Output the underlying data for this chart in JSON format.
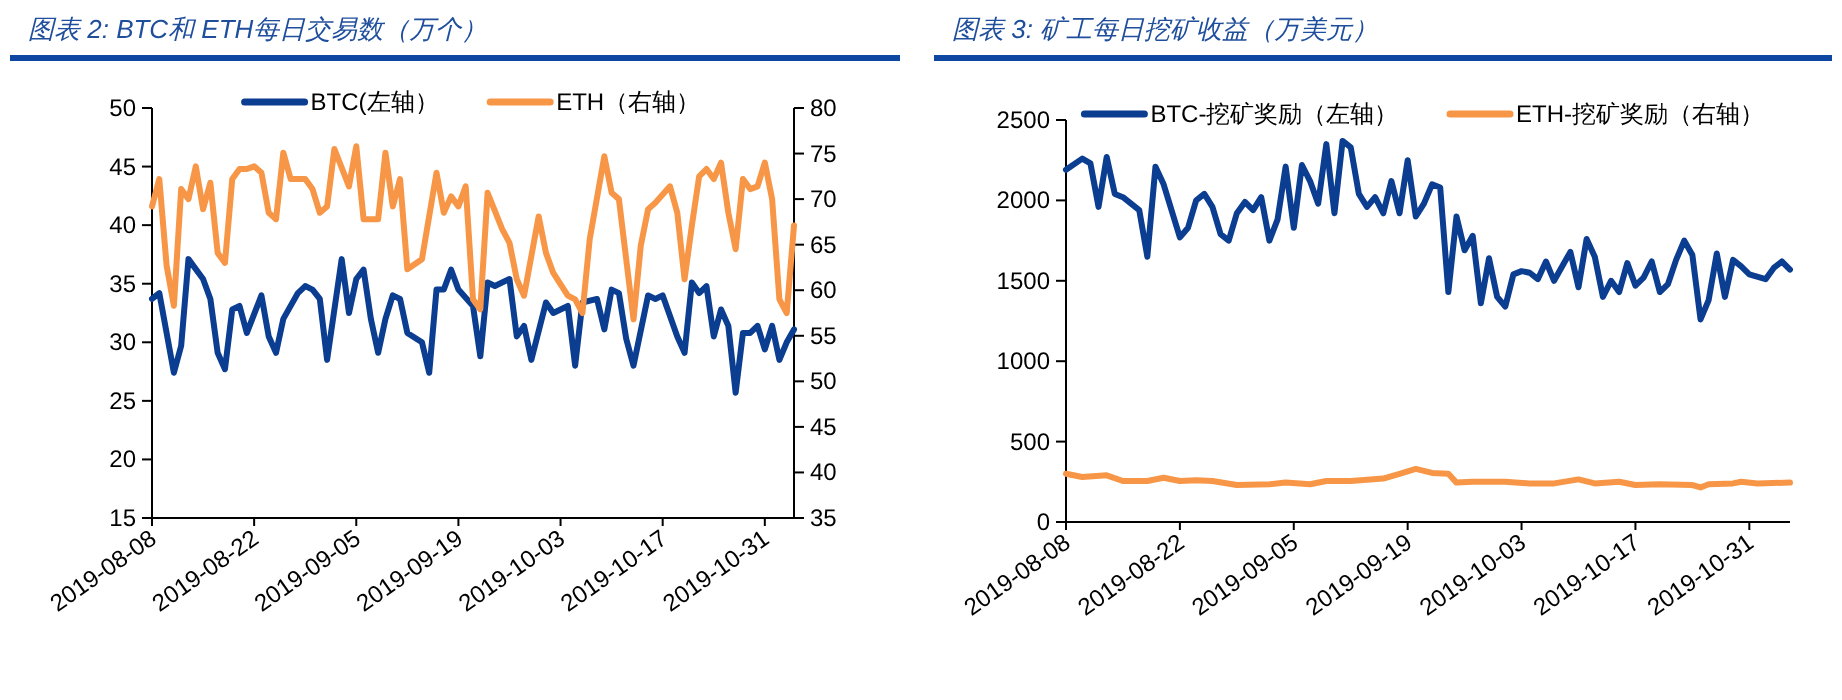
{
  "chart_data": [
    {
      "type": "line",
      "title": "图表 2:  BTC和 ETH每日交易数（万个）",
      "legend": "top",
      "xlim": [
        "2019-08-08",
        "2019-11-04"
      ],
      "xticks": [
        "2019-08-08",
        "2019-08-22",
        "2019-09-05",
        "2019-09-19",
        "2019-10-03",
        "2019-10-17",
        "2019-10-31"
      ],
      "ylim": [
        15,
        50
      ],
      "yticks": [
        15,
        20,
        25,
        30,
        35,
        40,
        45,
        50
      ],
      "y2lim": [
        35,
        80
      ],
      "y2ticks": [
        35,
        40,
        45,
        50,
        55,
        60,
        65,
        70,
        75,
        80
      ],
      "series": [
        {
          "name": "BTC(左轴）",
          "color": "#0b3d91",
          "x": [
            "2019-08-08",
            "2019-08-09",
            "2019-08-11",
            "2019-08-12",
            "2019-08-13",
            "2019-08-15",
            "2019-08-16",
            "2019-08-17",
            "2019-08-18",
            "2019-08-19",
            "2019-08-20",
            "2019-08-21",
            "2019-08-23",
            "2019-08-24",
            "2019-08-25",
            "2019-08-26",
            "2019-08-28",
            "2019-08-29",
            "2019-08-30",
            "2019-08-31",
            "2019-09-01",
            "2019-09-03",
            "2019-09-04",
            "2019-09-05",
            "2019-09-06",
            "2019-09-07",
            "2019-09-08",
            "2019-09-09",
            "2019-09-10",
            "2019-09-11",
            "2019-09-12",
            "2019-09-14",
            "2019-09-15",
            "2019-09-16",
            "2019-09-17",
            "2019-09-18",
            "2019-09-19",
            "2019-09-21",
            "2019-09-22",
            "2019-09-23",
            "2019-09-24",
            "2019-09-26",
            "2019-09-27",
            "2019-09-28",
            "2019-09-29",
            "2019-10-01",
            "2019-10-02",
            "2019-10-03",
            "2019-10-04",
            "2019-10-05",
            "2019-10-06",
            "2019-10-08",
            "2019-10-09",
            "2019-10-10",
            "2019-10-11",
            "2019-10-12",
            "2019-10-13",
            "2019-10-15",
            "2019-10-16",
            "2019-10-17",
            "2019-10-19",
            "2019-10-20",
            "2019-10-21",
            "2019-10-22",
            "2019-10-23",
            "2019-10-24",
            "2019-10-25",
            "2019-10-26",
            "2019-10-27",
            "2019-10-28",
            "2019-10-29",
            "2019-10-30",
            "2019-10-31",
            "2019-11-01",
            "2019-11-02",
            "2019-11-03",
            "2019-11-04"
          ],
          "values": [
            33.7,
            34.2,
            27.4,
            29.7,
            37.1,
            35.4,
            33.7,
            29.1,
            27.7,
            32.8,
            33.1,
            30.8,
            34.0,
            30.5,
            29.1,
            32,
            34.2,
            34.8,
            34.5,
            33.7,
            28.5,
            37.1,
            32.5,
            35.4,
            36.2,
            32,
            29.1,
            32,
            34,
            33.7,
            30.8,
            30,
            27.4,
            34.5,
            34.5,
            36.2,
            34.5,
            33.1,
            28.8,
            35.1,
            34.8,
            35.4,
            30.5,
            31.4,
            28.5,
            33.4,
            32.5,
            32.8,
            33.1,
            28,
            33.4,
            33.7,
            31.1,
            34.5,
            34.2,
            30.3,
            28,
            34,
            33.7,
            34,
            30.5,
            29.1,
            35.1,
            34.2,
            34.8,
            30.5,
            32.8,
            31.4,
            25.7,
            30.8,
            30.8,
            31.4,
            29.4,
            31.4,
            28.5,
            30,
            31.1
          ]
        },
        {
          "name": "ETH（右轴）",
          "color": "#f79646",
          "axis": "y2",
          "x": [
            "2019-08-08",
            "2019-08-09",
            "2019-08-10",
            "2019-08-11",
            "2019-08-12",
            "2019-08-13",
            "2019-08-14",
            "2019-08-15",
            "2019-08-16",
            "2019-08-17",
            "2019-08-18",
            "2019-08-19",
            "2019-08-20",
            "2019-08-21",
            "2019-08-22",
            "2019-08-23",
            "2019-08-24",
            "2019-08-25",
            "2019-08-26",
            "2019-08-27",
            "2019-08-29",
            "2019-08-30",
            "2019-08-31",
            "2019-09-01",
            "2019-09-02",
            "2019-09-04",
            "2019-09-05",
            "2019-09-06",
            "2019-09-08",
            "2019-09-09",
            "2019-09-10",
            "2019-09-11",
            "2019-09-12",
            "2019-09-14",
            "2019-09-16",
            "2019-09-17",
            "2019-09-18",
            "2019-09-19",
            "2019-09-20",
            "2019-09-21",
            "2019-09-22",
            "2019-09-23",
            "2019-09-25",
            "2019-09-26",
            "2019-09-27",
            "2019-09-28",
            "2019-09-30",
            "2019-10-01",
            "2019-10-02",
            "2019-10-04",
            "2019-10-05",
            "2019-10-06",
            "2019-10-07",
            "2019-10-09",
            "2019-10-10",
            "2019-10-11",
            "2019-10-12",
            "2019-10-13",
            "2019-10-14",
            "2019-10-15",
            "2019-10-16",
            "2019-10-18",
            "2019-10-19",
            "2019-10-20",
            "2019-10-21",
            "2019-10-22",
            "2019-10-23",
            "2019-10-24",
            "2019-10-25",
            "2019-10-26",
            "2019-10-27",
            "2019-10-28",
            "2019-10-29",
            "2019-10-30",
            "2019-10-31",
            "2019-11-01",
            "2019-11-02",
            "2019-11-03",
            "2019-11-04"
          ],
          "values": [
            69.2,
            72.2,
            62.7,
            58.3,
            71.1,
            70,
            73.6,
            68.9,
            71.8,
            64.1,
            63,
            72.2,
            73.3,
            73.3,
            73.6,
            72.9,
            68.5,
            67.8,
            75.1,
            72.2,
            72.2,
            71.1,
            68.5,
            69.2,
            75.5,
            71.4,
            75.8,
            67.8,
            67.8,
            75.1,
            69.2,
            72.2,
            62.3,
            63.4,
            72.9,
            68.5,
            70.3,
            69.2,
            71.4,
            59,
            57.9,
            70.7,
            66.7,
            65.2,
            61.2,
            59.4,
            68.1,
            64.1,
            61.9,
            59.4,
            59,
            57.5,
            65.6,
            74.7,
            70.7,
            70,
            63.4,
            56.8,
            64.9,
            68.9,
            69.6,
            71.4,
            68.5,
            61.2,
            67.1,
            72.5,
            73.3,
            72.2,
            74,
            68.5,
            64.5,
            72.2,
            71.1,
            71.4,
            74,
            70,
            59,
            57.5,
            67.1
          ]
        }
      ]
    },
    {
      "type": "line",
      "title": "图表 3:  矿工每日挖矿收益（万美元）",
      "legend": "top",
      "xlim": [
        "2019-08-08",
        "2019-11-05"
      ],
      "xticks": [
        "2019-08-08",
        "2019-08-22",
        "2019-09-05",
        "2019-09-19",
        "2019-10-03",
        "2019-10-17",
        "2019-10-31"
      ],
      "ylim": [
        0,
        2500
      ],
      "yticks": [
        0,
        500,
        1000,
        1500,
        2000,
        2500
      ],
      "series": [
        {
          "name": "BTC-挖矿奖励（左轴）",
          "color": "#0b3d91",
          "x": [
            "2019-08-08",
            "2019-08-10",
            "2019-08-11",
            "2019-08-12",
            "2019-08-13",
            "2019-08-14",
            "2019-08-15",
            "2019-08-17",
            "2019-08-18",
            "2019-08-19",
            "2019-08-20",
            "2019-08-22",
            "2019-08-23",
            "2019-08-24",
            "2019-08-25",
            "2019-08-26",
            "2019-08-27",
            "2019-08-28",
            "2019-08-29",
            "2019-08-30",
            "2019-08-31",
            "2019-09-01",
            "2019-09-02",
            "2019-09-03",
            "2019-09-04",
            "2019-09-05",
            "2019-09-06",
            "2019-09-07",
            "2019-09-08",
            "2019-09-09",
            "2019-09-10",
            "2019-09-11",
            "2019-09-12",
            "2019-09-13",
            "2019-09-14",
            "2019-09-15",
            "2019-09-16",
            "2019-09-17",
            "2019-09-18",
            "2019-09-19",
            "2019-09-20",
            "2019-09-21",
            "2019-09-22",
            "2019-09-23",
            "2019-09-24",
            "2019-09-25",
            "2019-09-26",
            "2019-09-27",
            "2019-09-28",
            "2019-09-29",
            "2019-09-30",
            "2019-10-01",
            "2019-10-02",
            "2019-10-03",
            "2019-10-04",
            "2019-10-05",
            "2019-10-06",
            "2019-10-07",
            "2019-10-08",
            "2019-10-09",
            "2019-10-10",
            "2019-10-11",
            "2019-10-12",
            "2019-10-13",
            "2019-10-14",
            "2019-10-15",
            "2019-10-16",
            "2019-10-17",
            "2019-10-18",
            "2019-10-19",
            "2019-10-20",
            "2019-10-21",
            "2019-10-22",
            "2019-10-23",
            "2019-10-24",
            "2019-10-25",
            "2019-10-26",
            "2019-10-27",
            "2019-10-28",
            "2019-10-29",
            "2019-10-30",
            "2019-10-31",
            "2019-11-02",
            "2019-11-03",
            "2019-11-04",
            "2019-11-05"
          ],
          "values": [
            2190,
            2260,
            2230,
            1960,
            2270,
            2040,
            2020,
            1940,
            1650,
            2210,
            2100,
            1770,
            1830,
            2000,
            2040,
            1960,
            1790,
            1750,
            1920,
            1990,
            1940,
            2020,
            1750,
            1880,
            2210,
            1830,
            2220,
            2120,
            1980,
            2350,
            1920,
            2370,
            2330,
            2040,
            1960,
            2020,
            1920,
            2120,
            1920,
            2250,
            1900,
            1980,
            2100,
            2080,
            1430,
            1900,
            1690,
            1780,
            1360,
            1640,
            1400,
            1340,
            1540,
            1560,
            1550,
            1510,
            1620,
            1500,
            1590,
            1680,
            1460,
            1760,
            1650,
            1400,
            1500,
            1430,
            1610,
            1470,
            1520,
            1620,
            1430,
            1480,
            1630,
            1750,
            1660,
            1260,
            1380,
            1670,
            1400,
            1630,
            1590,
            1540,
            1510,
            1580,
            1620,
            1570
          ]
        },
        {
          "name": "ETH-挖矿奖励（右轴）",
          "color": "#f79646",
          "x": [
            "2019-08-08",
            "2019-08-10",
            "2019-08-13",
            "2019-08-15",
            "2019-08-18",
            "2019-08-20",
            "2019-08-22",
            "2019-08-24",
            "2019-08-26",
            "2019-08-29",
            "2019-09-02",
            "2019-09-04",
            "2019-09-07",
            "2019-09-09",
            "2019-09-12",
            "2019-09-16",
            "2019-09-18",
            "2019-09-20",
            "2019-09-22",
            "2019-09-24",
            "2019-09-25",
            "2019-09-27",
            "2019-10-01",
            "2019-10-04",
            "2019-10-07",
            "2019-10-10",
            "2019-10-12",
            "2019-10-15",
            "2019-10-17",
            "2019-10-20",
            "2019-10-24",
            "2019-10-25",
            "2019-10-26",
            "2019-10-29",
            "2019-10-30",
            "2019-11-01",
            "2019-11-05"
          ],
          "values": [
            300,
            280,
            290,
            255,
            255,
            275,
            255,
            260,
            255,
            230,
            235,
            245,
            235,
            255,
            255,
            270,
            300,
            330,
            305,
            300,
            245,
            250,
            250,
            240,
            240,
            265,
            240,
            250,
            230,
            235,
            230,
            215,
            235,
            240,
            250,
            240,
            245
          ]
        }
      ]
    }
  ]
}
